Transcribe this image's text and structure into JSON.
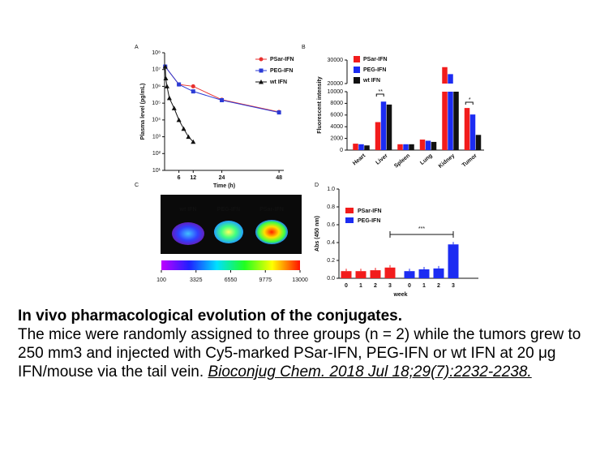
{
  "chart_data": [
    {
      "type": "line",
      "panel": "A",
      "xlabel": "Time (h)",
      "ylabel": "Plasma level (pg/mL)",
      "log_y": true,
      "xlim": [
        0,
        50
      ],
      "xticks": [
        6,
        12,
        24,
        48
      ],
      "ylim": [
        10,
        100000000
      ],
      "yticks": [
        {
          "value": 10,
          "label": "10¹"
        },
        {
          "value": 100,
          "label": "10²"
        },
        {
          "value": 1000,
          "label": "10³"
        },
        {
          "value": 10000,
          "label": "10⁴"
        },
        {
          "value": 100000,
          "label": "10⁵"
        },
        {
          "value": 1000000,
          "label": "10⁶"
        },
        {
          "value": 10000000,
          "label": "10⁷"
        },
        {
          "value": 100000000,
          "label": "10⁸"
        }
      ],
      "series": [
        {
          "name": "PSar-IFN",
          "color": "#e8312f",
          "marker": "circle",
          "x": [
            0.25,
            6,
            12,
            24,
            48
          ],
          "values": [
            15000000,
            1300000,
            1000000,
            160000,
            30000
          ]
        },
        {
          "name": "PEG-IFN",
          "color": "#2b3bd6",
          "marker": "square",
          "x": [
            0.25,
            6,
            12,
            24,
            48
          ],
          "values": [
            15000000,
            1300000,
            500000,
            150000,
            28000
          ]
        },
        {
          "name": "wt IFN",
          "color": "#111111",
          "marker": "triangle",
          "x": [
            0.25,
            0.5,
            1,
            2,
            4,
            6,
            8,
            10,
            12
          ],
          "values": [
            15000000,
            3000000,
            1000000,
            200000,
            50000,
            10000,
            3000,
            1000,
            500
          ]
        }
      ]
    },
    {
      "type": "bar",
      "panel": "B",
      "ylabel": "Fluorescent intensity",
      "ylim": [
        0,
        30000
      ],
      "ybreak": [
        10000,
        20000
      ],
      "yticks": [
        0,
        2000,
        4000,
        6000,
        8000,
        10000,
        20000,
        30000
      ],
      "categories": [
        "Heart",
        "Liver",
        "Spleen",
        "Lung",
        "Kidney",
        "Tumor"
      ],
      "series": [
        {
          "name": "PSar-IFN",
          "color": "#f21c1c",
          "values": [
            1100,
            4800,
            1000,
            1800,
            27000,
            7200
          ]
        },
        {
          "name": "PEG-IFN",
          "color": "#1c2cf2",
          "values": [
            1000,
            8300,
            1000,
            1600,
            24000,
            6100
          ]
        },
        {
          "name": "wt IFN",
          "color": "#111111",
          "values": [
            800,
            7800,
            1000,
            1400,
            10000,
            2600
          ]
        }
      ],
      "annotations": [
        "**",
        "*"
      ]
    },
    {
      "type": "bar",
      "panel": "D",
      "xlabel": "week",
      "ylabel": "Abs (450 nm)",
      "ylim": [
        0,
        1
      ],
      "yticks": [
        {
          "value": 0,
          "label": "0.0"
        },
        0.2,
        0.4,
        0.6,
        0.8,
        {
          "value": 1,
          "label": "1.0"
        }
      ],
      "categories": [
        "0",
        "1",
        "2",
        "3"
      ],
      "series": [
        {
          "name": "PSar-IFN",
          "color": "#f21c1c",
          "values": [
            0.08,
            0.08,
            0.09,
            0.12
          ]
        },
        {
          "name": "PEG-IFN",
          "color": "#1c2cf2",
          "values": [
            0.08,
            0.1,
            0.11,
            0.38
          ]
        }
      ],
      "annotations": [
        "***"
      ]
    }
  ],
  "image_panel": {
    "panel": "C",
    "labels": [
      "wt IFN",
      "PEG-IFN",
      "PSar-IFN"
    ],
    "colorbar_lim": [
      100,
      13000
    ],
    "colorbar_ticks": [
      100,
      3325,
      6550,
      9775,
      13000
    ]
  },
  "caption": {
    "title": "In vivo pharmacological evolution of the conjugates.",
    "text": "The mice were randomly assigned to three groups (n = 2) while the tumors grew to  250 mm3 and injected with Cy5-marked PSar-IFN, PEG-IFN or wt IFN at 20 μg IFN/mouse via the tail vein. ",
    "citation": "Bioconjug Chem. 2018 Jul 18;29(7):2232-2238."
  }
}
